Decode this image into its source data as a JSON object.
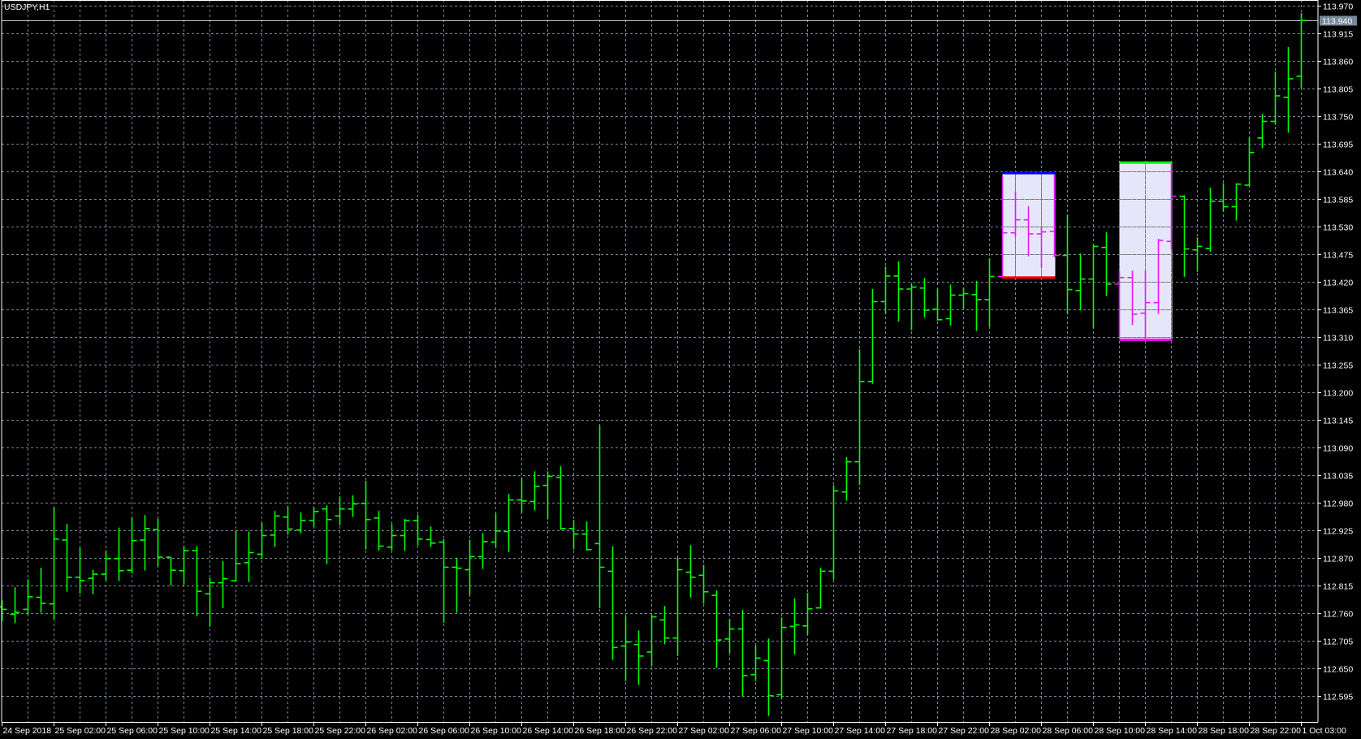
{
  "chart_data": {
    "type": "ohlc-bar",
    "title": "USDJPY,H1",
    "symbol": "USDJPY",
    "timeframe": "H1",
    "ylim": [
      112.595,
      113.97
    ],
    "grid": true,
    "colors": {
      "background": "#000000",
      "bar": "#00ff00",
      "bar_in_rectangle": "#e619fa",
      "grid": "#778899",
      "grid_in_rectangle": "#8a6e63",
      "axis": "#ffffff",
      "rectangle_fill": "#e6e6fa",
      "bid_line": "#c0c0c0",
      "bid_label_bg": "#778899"
    },
    "y_tick_labels": [
      "113.970",
      "113.915",
      "113.860",
      "113.805",
      "113.750",
      "113.695",
      "113.640",
      "113.585",
      "113.530",
      "113.475",
      "113.420",
      "113.365",
      "113.310",
      "113.255",
      "113.200",
      "113.145",
      "113.090",
      "113.035",
      "112.980",
      "112.925",
      "112.870",
      "112.815",
      "112.760",
      "112.705",
      "112.650",
      "112.595"
    ],
    "x_tick_labels": [
      "24 Sep 2018",
      "25 Sep 02:00",
      "25 Sep 06:00",
      "25 Sep 10:00",
      "25 Sep 14:00",
      "25 Sep 18:00",
      "25 Sep 22:00",
      "26 Sep 02:00",
      "26 Sep 06:00",
      "26 Sep 10:00",
      "26 Sep 14:00",
      "26 Sep 18:00",
      "26 Sep 22:00",
      "27 Sep 02:00",
      "27 Sep 06:00",
      "27 Sep 10:00",
      "27 Sep 14:00",
      "27 Sep 18:00",
      "27 Sep 22:00",
      "28 Sep 02:00",
      "28 Sep 06:00",
      "28 Sep 10:00",
      "28 Sep 14:00",
      "28 Sep 18:00",
      "28 Sep 22:00",
      "1 Oct 03:00"
    ],
    "bid": {
      "price": 113.94,
      "label": "113.940"
    },
    "bars_columns": [
      "time",
      "open",
      "high",
      "low",
      "close"
    ],
    "bars": [
      [
        "2018.09.24 22:00",
        112.772,
        112.785,
        112.745,
        112.767
      ],
      [
        "2018.09.24 23:00",
        112.757,
        112.811,
        112.741,
        112.761
      ],
      [
        "2018.09.25 00:00",
        112.767,
        112.827,
        112.758,
        112.792
      ],
      [
        "2018.09.25 01:00",
        112.791,
        112.85,
        112.762,
        112.779
      ],
      [
        "2018.09.25 02:00",
        112.778,
        112.971,
        112.749,
        112.907
      ],
      [
        "2018.09.25 03:00",
        112.905,
        112.937,
        112.804,
        112.831
      ],
      [
        "2018.09.25 04:00",
        112.831,
        112.89,
        112.8,
        112.824
      ],
      [
        "2018.09.25 05:00",
        112.829,
        112.846,
        112.799,
        112.837
      ],
      [
        "2018.09.25 06:00",
        112.837,
        112.884,
        112.826,
        112.868
      ],
      [
        "2018.09.25 07:00",
        112.868,
        112.93,
        112.825,
        112.844
      ],
      [
        "2018.09.25 08:00",
        112.845,
        112.95,
        112.84,
        112.904
      ],
      [
        "2018.09.25 09:00",
        112.905,
        112.955,
        112.846,
        112.928
      ],
      [
        "2018.09.25 10:00",
        112.926,
        112.947,
        112.854,
        112.871
      ],
      [
        "2018.09.25 11:00",
        112.871,
        112.871,
        112.816,
        112.845
      ],
      [
        "2018.09.25 12:00",
        112.844,
        112.893,
        112.818,
        112.884
      ],
      [
        "2018.09.25 13:00",
        112.884,
        112.893,
        112.755,
        112.803
      ],
      [
        "2018.09.25 14:00",
        112.798,
        112.83,
        112.734,
        112.82
      ],
      [
        "2018.09.25 15:00",
        112.82,
        112.863,
        112.771,
        112.828
      ],
      [
        "2018.09.25 16:00",
        112.824,
        112.924,
        112.824,
        112.858
      ],
      [
        "2018.09.25 17:00",
        112.86,
        112.922,
        112.823,
        112.88
      ],
      [
        "2018.09.25 18:00",
        112.877,
        112.94,
        112.869,
        112.914
      ],
      [
        "2018.09.25 19:00",
        112.915,
        112.963,
        112.893,
        112.953
      ],
      [
        "2018.09.25 20:00",
        112.951,
        112.973,
        112.917,
        112.927
      ],
      [
        "2018.09.25 21:00",
        112.925,
        112.96,
        112.92,
        112.944
      ],
      [
        "2018.09.25 22:00",
        112.944,
        112.971,
        112.932,
        112.962
      ],
      [
        "2018.09.25 23:00",
        112.967,
        112.974,
        112.859,
        112.946
      ],
      [
        "2018.09.26 00:00",
        112.953,
        112.992,
        112.936,
        112.967
      ],
      [
        "2018.09.26 01:00",
        112.967,
        112.994,
        112.953,
        112.977
      ],
      [
        "2018.09.26 02:00",
        112.978,
        113.023,
        112.888,
        112.946
      ],
      [
        "2018.09.26 03:00",
        112.949,
        112.963,
        112.886,
        112.893
      ],
      [
        "2018.09.26 04:00",
        112.891,
        112.937,
        112.886,
        112.914
      ],
      [
        "2018.09.26 05:00",
        112.914,
        112.947,
        112.885,
        112.944
      ],
      [
        "2018.09.26 06:00",
        112.944,
        112.956,
        112.896,
        112.907
      ],
      [
        "2018.09.26 07:00",
        112.906,
        112.932,
        112.893,
        112.899
      ],
      [
        "2018.09.26 08:00",
        112.901,
        112.907,
        112.742,
        112.851
      ],
      [
        "2018.09.26 09:00",
        112.851,
        112.87,
        112.762,
        112.849
      ],
      [
        "2018.09.26 10:00",
        112.846,
        112.906,
        112.797,
        112.872
      ],
      [
        "2018.09.26 11:00",
        112.872,
        112.919,
        112.849,
        112.902
      ],
      [
        "2018.09.26 12:00",
        112.901,
        112.958,
        112.891,
        112.923
      ],
      [
        "2018.09.26 13:00",
        112.922,
        112.997,
        112.883,
        112.985
      ],
      [
        "2018.09.26 14:00",
        112.985,
        113.029,
        112.961,
        112.983
      ],
      [
        "2018.09.26 15:00",
        112.982,
        113.042,
        112.966,
        113.012
      ],
      [
        "2018.09.26 16:00",
        113.014,
        113.042,
        112.948,
        113.032
      ],
      [
        "2018.09.26 17:00",
        113.03,
        113.052,
        112.927,
        112.928
      ],
      [
        "2018.09.26 18:00",
        112.928,
        112.945,
        112.888,
        112.917
      ],
      [
        "2018.09.26 19:00",
        112.917,
        112.942,
        112.886,
        112.886
      ],
      [
        "2018.09.26 20:00",
        112.898,
        113.133,
        112.771,
        112.851
      ],
      [
        "2018.09.26 21:00",
        112.843,
        112.893,
        112.668,
        112.691
      ],
      [
        "2018.09.26 22:00",
        112.694,
        112.753,
        112.626,
        112.702
      ],
      [
        "2018.09.26 23:00",
        112.697,
        112.725,
        112.618,
        112.674
      ],
      [
        "2018.09.27 00:00",
        112.682,
        112.756,
        112.655,
        112.752
      ],
      [
        "2018.09.27 01:00",
        112.746,
        112.774,
        112.699,
        112.71
      ],
      [
        "2018.09.27 02:00",
        112.71,
        112.87,
        112.676,
        112.846
      ],
      [
        "2018.09.27 03:00",
        112.841,
        112.895,
        112.792,
        112.831
      ],
      [
        "2018.09.27 04:00",
        112.835,
        112.856,
        112.78,
        112.802
      ],
      [
        "2018.09.27 05:00",
        112.795,
        112.805,
        112.652,
        112.706
      ],
      [
        "2018.09.27 06:00",
        112.708,
        112.748,
        112.682,
        112.728
      ],
      [
        "2018.09.27 07:00",
        112.728,
        112.766,
        112.595,
        112.635
      ],
      [
        "2018.09.27 08:00",
        112.637,
        112.695,
        112.626,
        112.67
      ],
      [
        "2018.09.27 09:00",
        112.665,
        112.709,
        112.556,
        112.595
      ],
      [
        "2018.09.27 10:00",
        112.597,
        112.751,
        112.59,
        112.731
      ],
      [
        "2018.09.27 11:00",
        112.733,
        112.789,
        112.679,
        112.736
      ],
      [
        "2018.09.27 12:00",
        112.734,
        112.8,
        112.718,
        112.768
      ],
      [
        "2018.09.27 13:00",
        112.77,
        112.85,
        112.77,
        112.843
      ],
      [
        "2018.09.27 14:00",
        112.843,
        113.014,
        112.828,
        113.003
      ],
      [
        "2018.09.27 15:00",
        113.001,
        113.07,
        112.985,
        113.061
      ],
      [
        "2018.09.27 16:00",
        113.061,
        113.285,
        113.017,
        113.221
      ],
      [
        "2018.09.27 17:00",
        113.221,
        113.405,
        113.218,
        113.38
      ],
      [
        "2018.09.27 18:00",
        113.38,
        113.45,
        113.357,
        113.431
      ],
      [
        "2018.09.27 19:00",
        113.431,
        113.46,
        113.342,
        113.405
      ],
      [
        "2018.09.27 20:00",
        113.405,
        113.416,
        113.325,
        113.409
      ],
      [
        "2018.09.27 21:00",
        113.407,
        113.427,
        113.35,
        113.363
      ],
      [
        "2018.09.27 22:00",
        113.365,
        113.406,
        113.344,
        113.344
      ],
      [
        "2018.09.27 23:00",
        113.346,
        113.414,
        113.334,
        113.393
      ],
      [
        "2018.09.28 00:00",
        113.393,
        113.408,
        113.367,
        113.396
      ],
      [
        "2018.09.28 01:00",
        113.394,
        113.421,
        113.323,
        113.384
      ],
      [
        "2018.09.28 02:00",
        113.384,
        113.466,
        113.331,
        113.43
      ],
      [
        "2018.09.28 03:00",
        113.43,
        113.629,
        113.429,
        113.517
      ],
      [
        "2018.09.28 04:00",
        113.517,
        113.599,
        113.511,
        113.543
      ],
      [
        "2018.09.28 05:00",
        113.543,
        113.57,
        113.472,
        113.515
      ],
      [
        "2018.09.28 06:00",
        113.515,
        113.53,
        113.449,
        113.519
      ],
      [
        "2018.09.28 07:00",
        113.52,
        113.635,
        113.47,
        113.472
      ],
      [
        "2018.09.28 08:00",
        113.472,
        113.552,
        113.357,
        113.404
      ],
      [
        "2018.09.28 09:00",
        113.402,
        113.476,
        113.364,
        113.425
      ],
      [
        "2018.09.28 10:00",
        113.425,
        113.494,
        113.329,
        113.49
      ],
      [
        "2018.09.28 11:00",
        113.488,
        113.518,
        113.393,
        113.415
      ],
      [
        "2018.09.28 12:00",
        113.415,
        113.442,
        113.312,
        113.428
      ],
      [
        "2018.09.28 13:00",
        113.428,
        113.442,
        113.335,
        113.355
      ],
      [
        "2018.09.28 14:00",
        113.357,
        113.443,
        113.306,
        113.378
      ],
      [
        "2018.09.28 15:00",
        113.378,
        113.505,
        113.357,
        113.502
      ],
      [
        "2018.09.28 16:00",
        113.5,
        113.657,
        113.486,
        113.59
      ],
      [
        "2018.09.28 17:00",
        113.59,
        113.592,
        113.431,
        113.485
      ],
      [
        "2018.09.28 18:00",
        113.483,
        113.508,
        113.441,
        113.49
      ],
      [
        "2018.09.28 19:00",
        113.486,
        113.607,
        113.481,
        113.58
      ],
      [
        "2018.09.28 20:00",
        113.58,
        113.616,
        113.561,
        113.569
      ],
      [
        "2018.09.28 21:00",
        113.569,
        113.616,
        113.543,
        113.614
      ],
      [
        "2018.09.28 22:00",
        113.612,
        113.708,
        113.612,
        113.677
      ],
      [
        "2018.09.28 23:00",
        113.706,
        113.754,
        113.687,
        113.739
      ],
      [
        "2018.10.01 01:00",
        113.739,
        113.838,
        113.734,
        113.79
      ],
      [
        "2018.10.01 02:00",
        113.787,
        113.887,
        113.718,
        113.824
      ],
      [
        "2018.10.01 03:00",
        113.829,
        113.955,
        113.807,
        113.94
      ]
    ],
    "rectangles": [
      {
        "start_time": "2018.09.28 03:00",
        "end_time": "2018.09.28 07:00",
        "top": 113.636,
        "bottom": 113.428,
        "top_line_color": "#0000ff",
        "bottom_line_color": "#ff0000"
      },
      {
        "start_time": "2018.09.28 12:00",
        "end_time": "2018.09.28 16:00",
        "top": 113.657,
        "bottom": 113.304,
        "top_line_color": "#00ff00",
        "bottom_line_color": "#ff00ff"
      }
    ]
  }
}
